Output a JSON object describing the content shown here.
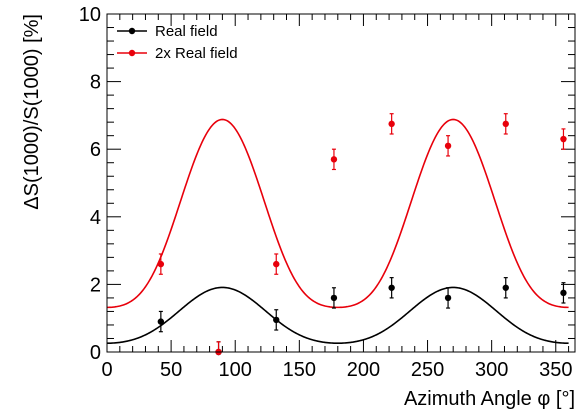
{
  "chart_data": {
    "type": "scatter",
    "title": "",
    "xlabel": "Azimuth Angle φ [°]",
    "ylabel": "ΔS(1000)/S(1000) [%]",
    "xlim": [
      0,
      365
    ],
    "ylim": [
      0,
      10
    ],
    "x_ticks": [
      0,
      50,
      100,
      150,
      200,
      250,
      300,
      350
    ],
    "y_ticks": [
      0,
      2,
      4,
      6,
      8,
      10
    ],
    "grid": false,
    "legend_position": "top-left",
    "series": [
      {
        "name": "Real field",
        "color": "#000000",
        "points": [
          {
            "x": 42,
            "y": 0.9,
            "err": 0.3
          },
          {
            "x": 87,
            "y": 0.0,
            "err": 0.3
          },
          {
            "x": 132,
            "y": 0.95,
            "err": 0.3
          },
          {
            "x": 177,
            "y": 1.6,
            "err": 0.3
          },
          {
            "x": 222,
            "y": 1.9,
            "err": 0.3
          },
          {
            "x": 266,
            "y": 1.6,
            "err": 0.3
          },
          {
            "x": 311,
            "y": 1.9,
            "err": 0.3
          },
          {
            "x": 356,
            "y": 1.75,
            "err": 0.3
          }
        ],
        "fit": {
          "A": 0.975,
          "B": 0.825,
          "C": 0.11,
          "D": 0.0
        }
      },
      {
        "name": "2x Real field",
        "color": "#e8000b",
        "points": [
          {
            "x": 42,
            "y": 2.6,
            "err": 0.3
          },
          {
            "x": 87,
            "y": 0.0,
            "err": 0.3
          },
          {
            "x": 132,
            "y": 2.6,
            "err": 0.3
          },
          {
            "x": 177,
            "y": 5.7,
            "err": 0.3
          },
          {
            "x": 222,
            "y": 6.75,
            "err": 0.3
          },
          {
            "x": 266,
            "y": 6.1,
            "err": 0.3
          },
          {
            "x": 311,
            "y": 6.75,
            "err": 0.3
          },
          {
            "x": 356,
            "y": 6.3,
            "err": 0.3
          }
        ],
        "fit": {
          "A": 3.6,
          "B": 2.8,
          "C": 0.5,
          "D": 0.02
        }
      }
    ]
  }
}
